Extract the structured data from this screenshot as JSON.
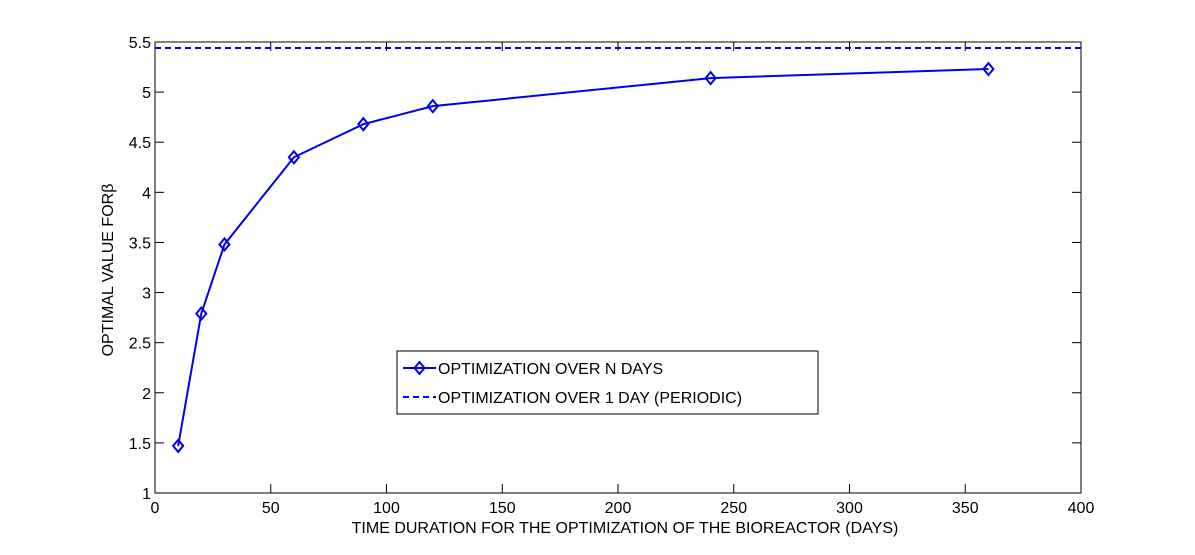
{
  "chart_data": {
    "type": "line",
    "xlabel": "TIME DURATION FOR THE OPTIMIZATION OF THE BIOREACTOR (DAYS)",
    "ylabel": "OPTIMAL VALUE FORβ",
    "xlim": [
      0,
      400
    ],
    "ylim": [
      1,
      5.5
    ],
    "xticks": [
      0,
      50,
      100,
      150,
      200,
      250,
      300,
      350,
      400
    ],
    "yticks": [
      1,
      1.5,
      2,
      2.5,
      3,
      3.5,
      4,
      4.5,
      5,
      5.5
    ],
    "xtick_labels": [
      "0",
      "50",
      "100",
      "150",
      "200",
      "250",
      "300",
      "350",
      "400"
    ],
    "ytick_labels": [
      "1",
      "1.5",
      "2",
      "2.5",
      "3",
      "3.5",
      "4",
      "4.5",
      "5",
      "5.5"
    ],
    "grid": false,
    "legend_position": "center",
    "series": [
      {
        "name": "OPTIMIZATION OVER N DAYS",
        "style": "solid",
        "marker": "diamond",
        "color": "#0000ee",
        "x": [
          10,
          20,
          30,
          60,
          90,
          120,
          240,
          360
        ],
        "y": [
          1.47,
          2.79,
          3.48,
          4.35,
          4.68,
          4.86,
          5.14,
          5.23
        ]
      },
      {
        "name": "OPTIMIZATION OVER 1 DAY (PERIODIC)",
        "style": "dashed",
        "marker": "none",
        "color": "#0000ee",
        "x": [
          0,
          400
        ],
        "y": [
          5.44,
          5.44
        ]
      }
    ]
  }
}
